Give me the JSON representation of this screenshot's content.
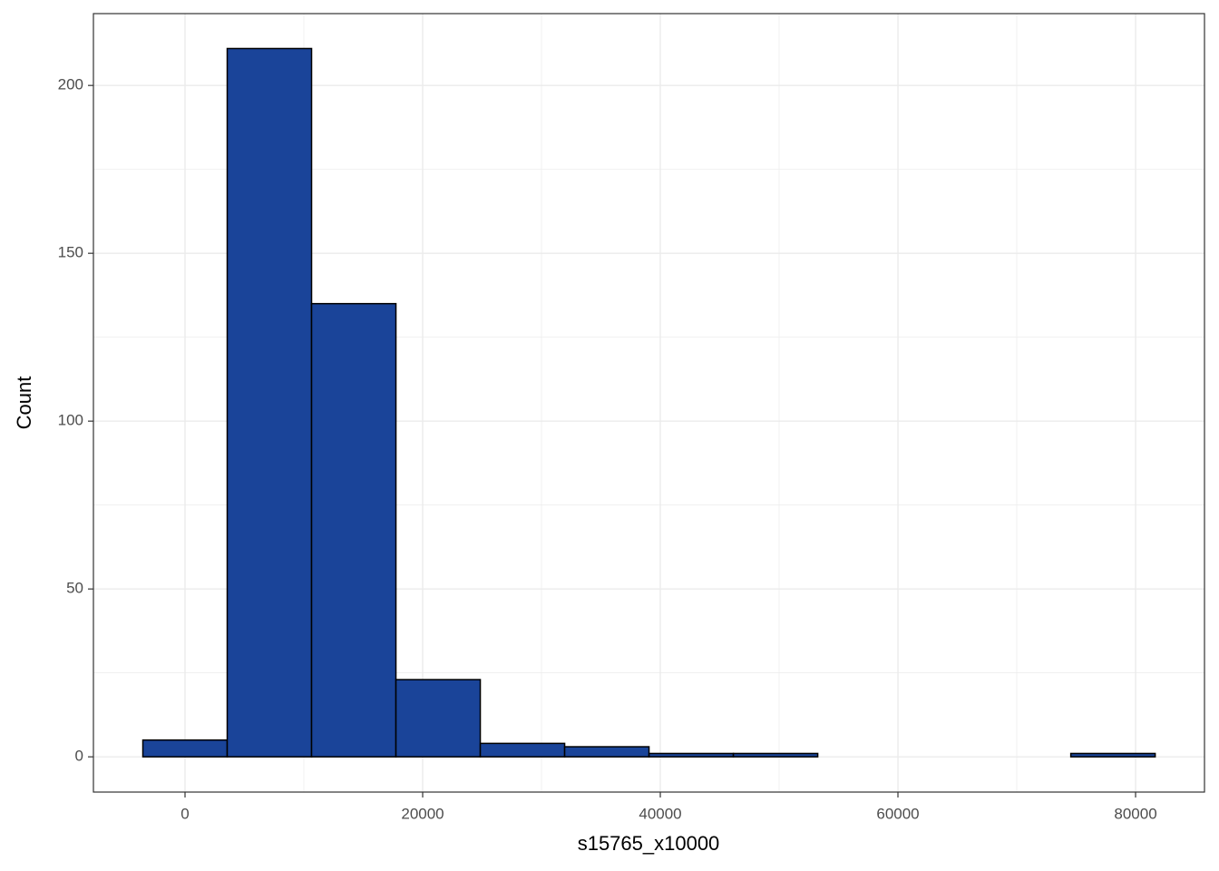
{
  "chart_data": {
    "type": "histogram",
    "x_label": "s15765_x10000",
    "y_label": "Count",
    "bins": [
      -3550,
      3550,
      10650,
      17750,
      24850,
      31950,
      39050,
      46150,
      53250,
      60350,
      67450,
      74550,
      81650
    ],
    "counts": [
      5,
      211,
      135,
      23,
      4,
      3,
      1,
      1,
      0,
      0,
      0,
      1
    ],
    "color": "#1a4499",
    "edge_color": "#000000",
    "xlim": [
      -7710,
      85800
    ],
    "ylim": [
      -10.5,
      221.4
    ],
    "xticks": [
      0,
      20000,
      40000,
      60000,
      80000
    ],
    "yticks": [
      0,
      50,
      100,
      150,
      200
    ],
    "x_minor_grid": [
      10000,
      30000,
      50000,
      70000
    ],
    "y_minor_grid": [
      25,
      75,
      125,
      175
    ],
    "grid": true
  }
}
